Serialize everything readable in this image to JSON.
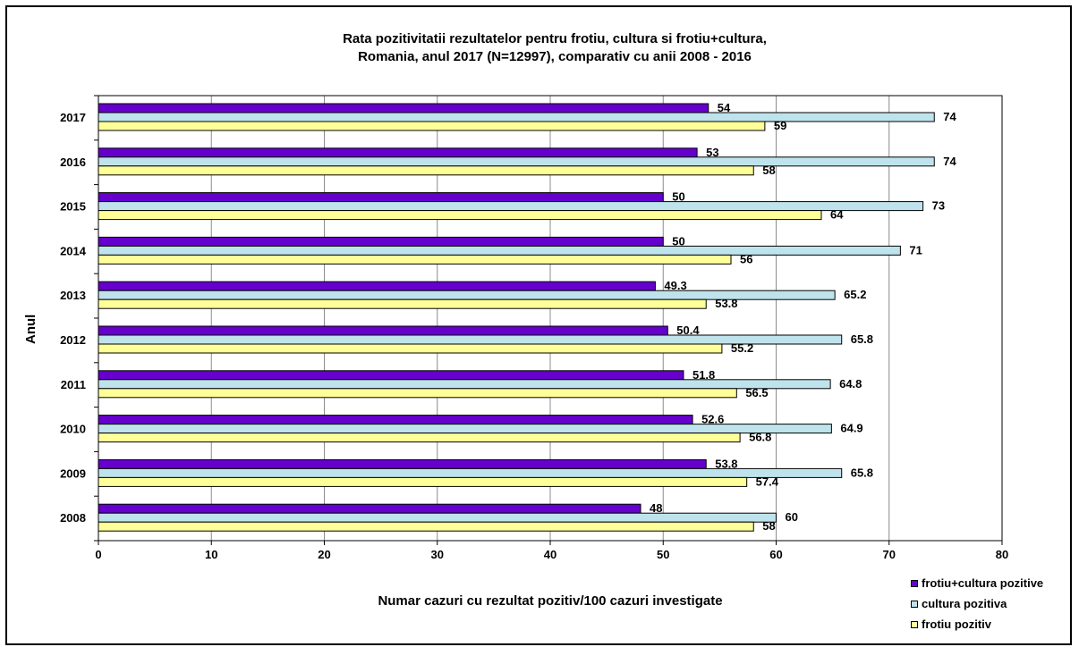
{
  "chart_data": {
    "type": "bar",
    "orientation": "horizontal",
    "title_lines": [
      "Rata pozitivitatii  rezultatelor pentru frotiu, cultura si frotiu+cultura,",
      "Romania, anul 2017 (N=12997), comparativ cu anii 2008 - 2016"
    ],
    "xlabel": "Numar cazuri cu rezultat pozitiv/100 cazuri investigate",
    "ylabel": "Anul",
    "xlim": [
      0,
      80
    ],
    "xticks": [
      0,
      10,
      20,
      30,
      40,
      50,
      60,
      70,
      80
    ],
    "grid": "vertical",
    "legend_position": "bottom-right",
    "categories": [
      "2017",
      "2016",
      "2015",
      "2014",
      "2013",
      "2012",
      "2011",
      "2010",
      "2009",
      "2008"
    ],
    "series": [
      {
        "name": "frotiu+cultura pozitive",
        "color": "#6600cc",
        "values": [
          54,
          53,
          50,
          50,
          49.3,
          50.4,
          51.8,
          52.6,
          53.8,
          48
        ],
        "labels": [
          "54",
          "53",
          "50",
          "50",
          "49.3",
          "50.4",
          "51.8",
          "52.6",
          "53.8",
          "48"
        ]
      },
      {
        "name": "cultura pozitiva",
        "color": "#bfe3ec",
        "values": [
          74,
          74,
          73,
          71,
          65.2,
          65.8,
          64.8,
          64.9,
          65.8,
          60
        ],
        "labels": [
          "74",
          "74",
          "73",
          "71",
          "65.2",
          "65.8",
          "64.8",
          "64.9",
          "65.8",
          "60"
        ]
      },
      {
        "name": "frotiu pozitiv",
        "color": "#ffff99",
        "values": [
          59,
          58,
          64,
          56,
          53.8,
          55.2,
          56.5,
          56.8,
          57.4,
          58
        ],
        "labels": [
          "59",
          "58",
          "64",
          "56",
          "53.8",
          "55.2",
          "56.5",
          "56.8",
          "57.4",
          "58"
        ]
      }
    ]
  }
}
